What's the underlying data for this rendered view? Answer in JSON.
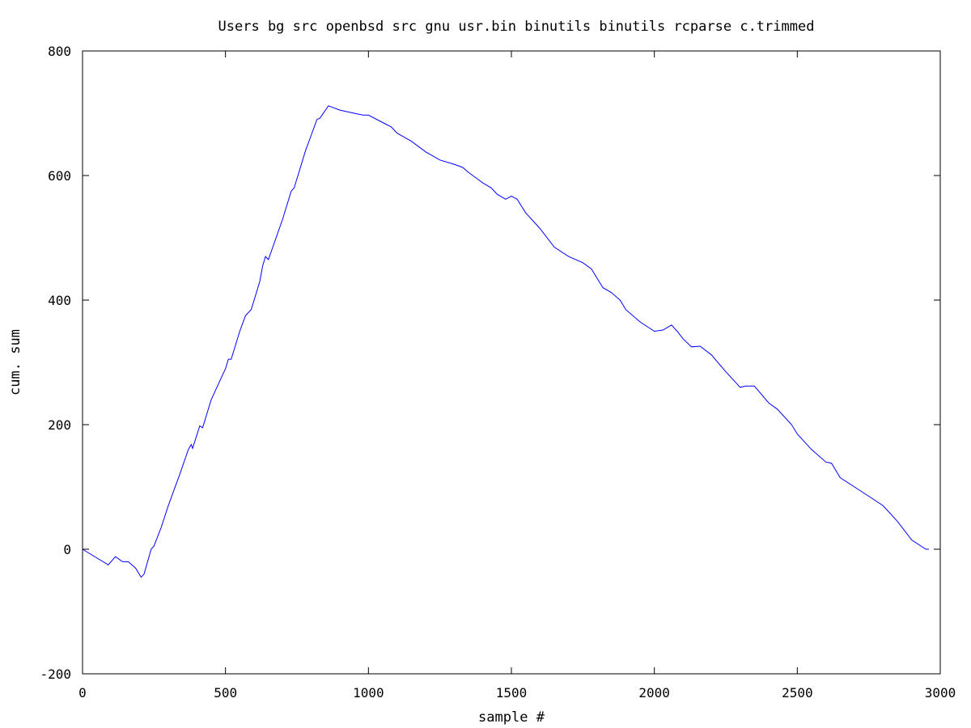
{
  "chart_data": {
    "type": "line",
    "title": "Users bg src openbsd src gnu usr.bin binutils binutils rcparse c.trimmed",
    "xlabel": "sample #",
    "ylabel": "cum. sum",
    "xlim": [
      0,
      3000
    ],
    "ylim": [
      -200,
      800
    ],
    "xticks": [
      0,
      500,
      1000,
      1500,
      2000,
      2500,
      3000
    ],
    "yticks": [
      -200,
      0,
      200,
      400,
      600,
      800
    ],
    "grid": false,
    "legend": "none",
    "series": [
      {
        "color": "#0000ff",
        "points": [
          [
            0,
            0
          ],
          [
            90,
            -25
          ],
          [
            115,
            -12
          ],
          [
            140,
            -20
          ],
          [
            160,
            -20
          ],
          [
            185,
            -30
          ],
          [
            205,
            -45
          ],
          [
            215,
            -40
          ],
          [
            240,
            0
          ],
          [
            250,
            5
          ],
          [
            275,
            35
          ],
          [
            300,
            70
          ],
          [
            340,
            120
          ],
          [
            370,
            160
          ],
          [
            380,
            168
          ],
          [
            385,
            162
          ],
          [
            410,
            198
          ],
          [
            420,
            195
          ],
          [
            450,
            240
          ],
          [
            470,
            260
          ],
          [
            480,
            270
          ],
          [
            500,
            290
          ],
          [
            510,
            305
          ],
          [
            520,
            305
          ],
          [
            550,
            350
          ],
          [
            570,
            375
          ],
          [
            590,
            385
          ],
          [
            620,
            430
          ],
          [
            630,
            455
          ],
          [
            640,
            470
          ],
          [
            650,
            465
          ],
          [
            700,
            530
          ],
          [
            730,
            575
          ],
          [
            740,
            580
          ],
          [
            780,
            640
          ],
          [
            820,
            690
          ],
          [
            830,
            692
          ],
          [
            860,
            712
          ],
          [
            900,
            705
          ],
          [
            950,
            700
          ],
          [
            980,
            697
          ],
          [
            1000,
            697
          ],
          [
            1050,
            685
          ],
          [
            1080,
            678
          ],
          [
            1100,
            668
          ],
          [
            1150,
            655
          ],
          [
            1200,
            638
          ],
          [
            1250,
            625
          ],
          [
            1300,
            618
          ],
          [
            1330,
            613
          ],
          [
            1350,
            605
          ],
          [
            1380,
            595
          ],
          [
            1400,
            588
          ],
          [
            1430,
            580
          ],
          [
            1450,
            570
          ],
          [
            1480,
            562
          ],
          [
            1500,
            567
          ],
          [
            1520,
            562
          ],
          [
            1550,
            540
          ],
          [
            1600,
            515
          ],
          [
            1650,
            485
          ],
          [
            1700,
            470
          ],
          [
            1750,
            460
          ],
          [
            1780,
            450
          ],
          [
            1800,
            435
          ],
          [
            1820,
            420
          ],
          [
            1850,
            412
          ],
          [
            1880,
            400
          ],
          [
            1900,
            385
          ],
          [
            1950,
            365
          ],
          [
            2000,
            350
          ],
          [
            2030,
            352
          ],
          [
            2060,
            360
          ],
          [
            2080,
            350
          ],
          [
            2100,
            338
          ],
          [
            2130,
            325
          ],
          [
            2160,
            326
          ],
          [
            2200,
            312
          ],
          [
            2250,
            285
          ],
          [
            2300,
            260
          ],
          [
            2320,
            262
          ],
          [
            2350,
            262
          ],
          [
            2400,
            235
          ],
          [
            2430,
            225
          ],
          [
            2450,
            215
          ],
          [
            2480,
            200
          ],
          [
            2500,
            185
          ],
          [
            2550,
            160
          ],
          [
            2600,
            140
          ],
          [
            2620,
            138
          ],
          [
            2650,
            115
          ],
          [
            2700,
            100
          ],
          [
            2750,
            85
          ],
          [
            2800,
            70
          ],
          [
            2850,
            45
          ],
          [
            2900,
            15
          ],
          [
            2950,
            0
          ],
          [
            2960,
            0
          ]
        ]
      }
    ]
  }
}
